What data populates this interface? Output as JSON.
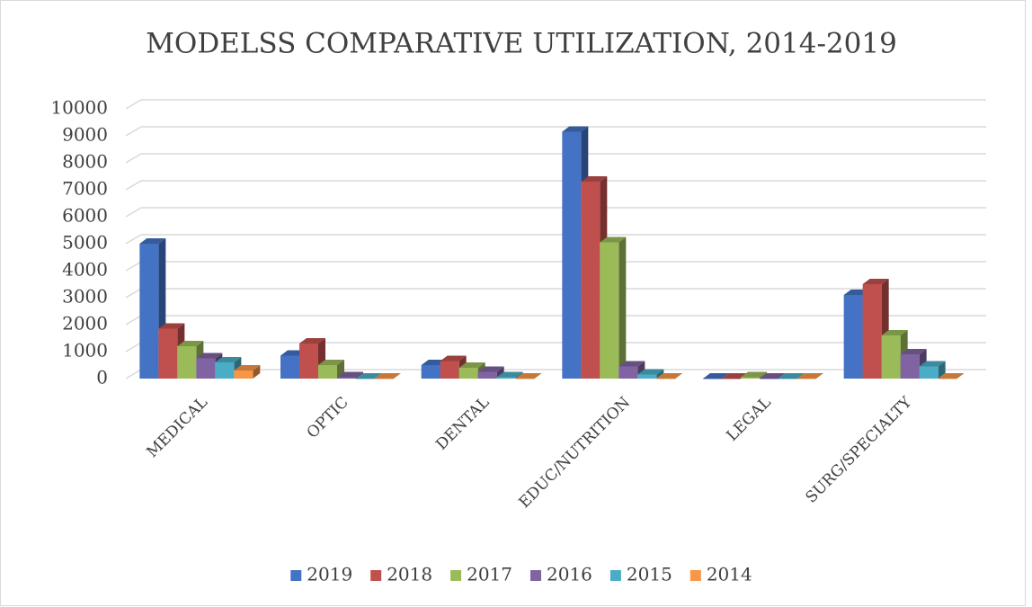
{
  "chart_data": {
    "type": "bar3d",
    "title": "MODELSS COMPARATIVE UTILIZATION, 2014-2019",
    "categories": [
      "MEDICAL",
      "OPTIC",
      "DENTAL",
      "EDUC/NUTRITION",
      "LEGAL",
      "SURG/SPECIALTY"
    ],
    "series": [
      {
        "name": "2019",
        "color": "#4472c4",
        "values": [
          5000,
          850,
          500,
          9150,
          0,
          3100
        ]
      },
      {
        "name": "2018",
        "color": "#c0504d",
        "values": [
          1850,
          1300,
          650,
          7300,
          0,
          3500
        ]
      },
      {
        "name": "2017",
        "color": "#9bbb59",
        "values": [
          1200,
          500,
          400,
          5050,
          50,
          1600
        ]
      },
      {
        "name": "2016",
        "color": "#8064a2",
        "values": [
          750,
          50,
          250,
          450,
          0,
          900
        ]
      },
      {
        "name": "2015",
        "color": "#4bacc6",
        "values": [
          600,
          0,
          50,
          150,
          0,
          450
        ]
      },
      {
        "name": "2014",
        "color": "#f79646",
        "values": [
          300,
          0,
          0,
          0,
          0,
          0
        ]
      }
    ],
    "ylim": [
      0,
      10000
    ],
    "yticks": [
      0,
      1000,
      2000,
      3000,
      4000,
      5000,
      6000,
      7000,
      8000,
      9000,
      10000
    ],
    "grid": true,
    "legend": "bottom"
  }
}
